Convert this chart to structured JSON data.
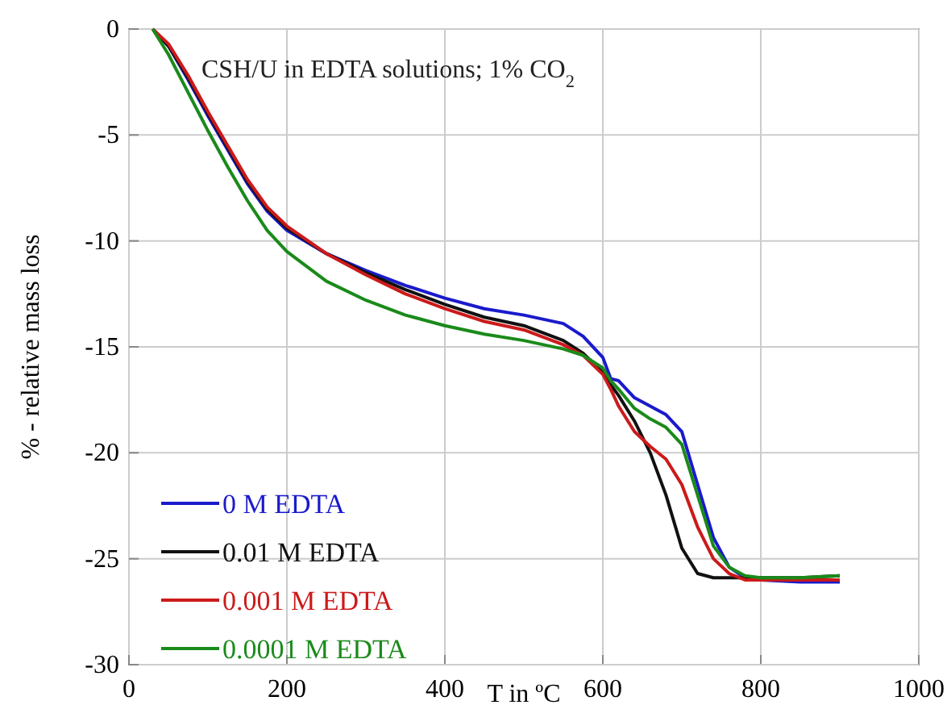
{
  "chart_data": {
    "type": "line",
    "xlabel": "T in ºC",
    "ylabel": "% - relative mass loss",
    "annotations": [
      "CSH/U in EDTA solutions; 1% CO$_{2}$"
    ],
    "xlim": [
      0,
      1000
    ],
    "ylim": [
      -30,
      0
    ],
    "xticks": [
      0,
      200,
      400,
      600,
      800,
      1000
    ],
    "yticks": [
      0,
      -5,
      -10,
      -15,
      -20,
      -25,
      -30
    ],
    "grid": true,
    "legend": "bottom left",
    "line_style": "solid",
    "x": [
      30,
      50,
      75,
      100,
      125,
      150,
      175,
      200,
      250,
      300,
      350,
      400,
      450,
      500,
      550,
      575,
      600,
      610,
      620,
      640,
      660,
      680,
      700,
      720,
      740,
      760,
      780,
      800,
      850,
      900
    ],
    "series": [
      {
        "name": "0 M EDTA",
        "color": "#1a1acc",
        "values": [
          0,
          -0.8,
          -2.4,
          -4.1,
          -5.7,
          -7.3,
          -8.6,
          -9.5,
          -10.6,
          -11.4,
          -12.1,
          -12.7,
          -13.2,
          -13.5,
          -13.9,
          -14.5,
          -15.5,
          -16.5,
          -16.6,
          -17.4,
          -17.8,
          -18.2,
          -19.0,
          -21.5,
          -24.0,
          -25.4,
          -25.9,
          -26.0,
          -26.1,
          -26.1
        ]
      },
      {
        "name": "0.01 M EDTA",
        "color": "#111111",
        "values": [
          0,
          -0.8,
          -2.3,
          -4.0,
          -5.6,
          -7.2,
          -8.5,
          -9.4,
          -10.6,
          -11.5,
          -12.3,
          -13.0,
          -13.6,
          -14.0,
          -14.7,
          -15.3,
          -16.2,
          -16.8,
          -17.3,
          -18.5,
          -20.0,
          -22.0,
          -24.5,
          -25.7,
          -25.9,
          -25.9,
          -25.9,
          -25.9,
          -25.9,
          -25.8
        ]
      },
      {
        "name": "0.001 M EDTA",
        "color": "#cc1a1a",
        "values": [
          0,
          -0.7,
          -2.2,
          -3.9,
          -5.5,
          -7.1,
          -8.4,
          -9.3,
          -10.6,
          -11.6,
          -12.5,
          -13.2,
          -13.8,
          -14.2,
          -14.9,
          -15.4,
          -16.3,
          -17.0,
          -17.8,
          -19.0,
          -19.7,
          -20.3,
          -21.5,
          -23.5,
          -25.0,
          -25.7,
          -26.0,
          -26.0,
          -26.0,
          -26.0
        ]
      },
      {
        "name": "0.0001 M EDTA",
        "color": "#1a8a1a",
        "values": [
          0,
          -1.2,
          -3.0,
          -4.8,
          -6.5,
          -8.1,
          -9.5,
          -10.5,
          -11.9,
          -12.8,
          -13.5,
          -14.0,
          -14.4,
          -14.7,
          -15.1,
          -15.4,
          -16.0,
          -16.6,
          -17.0,
          -17.9,
          -18.4,
          -18.8,
          -19.6,
          -22.0,
          -24.4,
          -25.4,
          -25.8,
          -25.9,
          -25.9,
          -25.8
        ]
      }
    ]
  }
}
